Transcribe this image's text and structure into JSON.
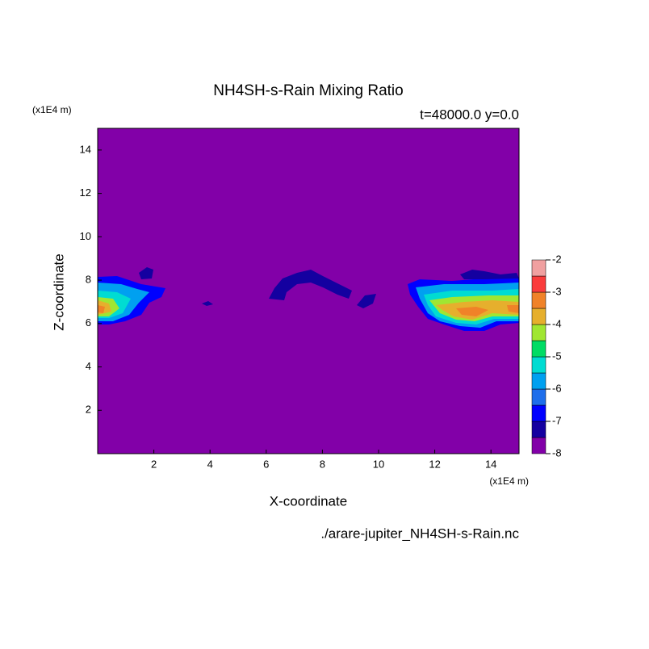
{
  "chart_data": {
    "type": "contour",
    "title": "NH4SH-s-Rain Mixing Ratio",
    "subtitle": "t=48000.0 y=0.0",
    "x_label": "X-coordinate",
    "y_label": "Z-coordinate",
    "x_unit": "(x1E4 m)",
    "y_unit": "(x1E4 m)",
    "source": "./arare-jupiter_NH4SH-s-Rain.nc",
    "xlim": [
      0,
      15
    ],
    "xticks": [
      2,
      4,
      6,
      8,
      10,
      12,
      14
    ],
    "ylim": [
      0,
      15
    ],
    "yticks": [
      2,
      4,
      6,
      8,
      10,
      12,
      14
    ],
    "levels": [
      -8,
      -7.5,
      -7,
      -6.5,
      -6,
      -5.5,
      -5,
      -4.5,
      -4,
      -3.5,
      -3,
      -2.5,
      -2
    ],
    "colors": [
      "#8200a8",
      "#1400a0",
      "#0000ff",
      "#1e6eeb",
      "#00a0f0",
      "#00dcd2",
      "#00dc64",
      "#a0e632",
      "#e6af2d",
      "#f08228",
      "#fa3c3c",
      "#f0a0a0"
    ],
    "colorbar_ticks": [
      -8,
      -7,
      -6,
      -5,
      -4,
      -3,
      -2
    ]
  }
}
